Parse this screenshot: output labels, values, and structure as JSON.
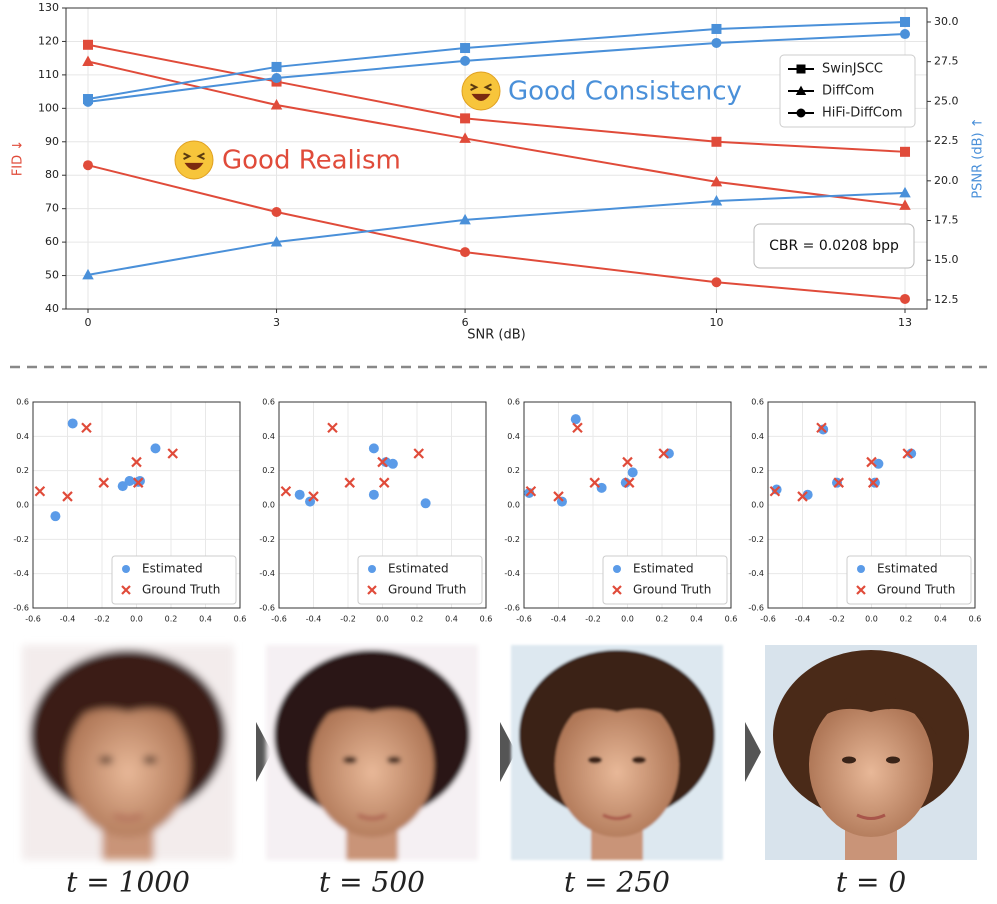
{
  "chart_data": [
    {
      "type": "line",
      "xlabel": "SNR (dB)",
      "ylabel": "FID ↓",
      "ylabel_color": "#e04b3a",
      "y2label": "PSNR (dB) ↑",
      "y2label_color": "#4a90d9",
      "x": [
        0,
        3,
        6,
        10,
        13
      ],
      "xlim": [
        -0.35,
        13.35
      ],
      "xticks": [
        0,
        3,
        6,
        10,
        13
      ],
      "ylim": [
        40,
        130
      ],
      "yticks": [
        40,
        50,
        60,
        70,
        80,
        90,
        100,
        110,
        120,
        130
      ],
      "y2lim": [
        11.93,
        30.88
      ],
      "y2ticks": [
        12.5,
        {
          "value": 15,
          "label": "15.0"
        },
        17.5,
        {
          "value": 20,
          "label": "20.0"
        },
        22.5,
        {
          "value": 25,
          "label": "25.0"
        },
        27.5,
        {
          "value": 30,
          "label": "30.0"
        }
      ],
      "grid": true,
      "series": [
        {
          "marker": "square",
          "color": "#e04b3a",
          "axis": "y",
          "values": [
            119,
            108,
            97,
            90,
            87
          ]
        },
        {
          "marker": "triangle",
          "color": "#e04b3a",
          "axis": "y",
          "values": [
            114,
            101,
            91,
            78,
            71
          ]
        },
        {
          "marker": "circle",
          "color": "#e04b3a",
          "axis": "y",
          "values": [
            83,
            69,
            57,
            48,
            43
          ]
        },
        {
          "marker": "square",
          "color": "#4a90d9",
          "axis": "y2",
          "values": [
            25.15,
            27.17,
            28.36,
            29.56,
            30.0
          ]
        },
        {
          "marker": "triangle",
          "color": "#4a90d9",
          "axis": "y2",
          "values": [
            14.08,
            16.15,
            17.54,
            18.73,
            19.24
          ]
        },
        {
          "marker": "circle",
          "color": "#4a90d9",
          "axis": "y2",
          "values": [
            24.97,
            26.47,
            27.55,
            28.68,
            29.24
          ]
        }
      ],
      "legend": {
        "position": "upper right",
        "entries": [
          {
            "name": "SwinJSCC",
            "marker": "square"
          },
          {
            "name": "DiffCom",
            "marker": "triangle"
          },
          {
            "name": "HiFi-DiffCom",
            "marker": "circle"
          }
        ]
      },
      "annotations": [
        {
          "text": "Good Consistency",
          "color": "#4a90d9"
        },
        {
          "text": "Good Realism",
          "color": "#e04b3a"
        },
        {
          "text": "CBR = 0.0208 bpp",
          "color": "#111111"
        }
      ]
    },
    {
      "type": "scatter",
      "xlim": [
        -0.6,
        0.6
      ],
      "ylim": [
        -0.6,
        0.6
      ],
      "xticks": [
        -0.6,
        -0.4,
        -0.2,
        {
          "value": 0,
          "label": "0.0"
        },
        0.2,
        0.4,
        0.6
      ],
      "yticks": [
        -0.6,
        -0.4,
        -0.2,
        {
          "value": 0,
          "label": "0.0"
        },
        0.2,
        0.4,
        0.6
      ],
      "grid": true,
      "legend": "lower right",
      "series": [
        {
          "name": "Estimated",
          "marker": "circle",
          "color": "#5b9be8",
          "x": [
            -0.37,
            -0.47,
            -0.08,
            -0.04,
            0.01,
            0.11,
            0.02
          ],
          "values": [
            0.475,
            -0.065,
            0.11,
            0.14,
            0.135,
            0.33,
            0.14
          ]
        },
        {
          "name": "Ground Truth",
          "marker": "cross",
          "color": "#e04b3a",
          "x": [
            -0.56,
            -0.4,
            -0.29,
            -0.19,
            0.0,
            0.01,
            0.21
          ],
          "values": [
            0.08,
            0.05,
            0.45,
            0.13,
            0.25,
            0.13,
            0.3
          ]
        }
      ]
    },
    {
      "type": "scatter",
      "xlim": [
        -0.6,
        0.6
      ],
      "ylim": [
        -0.6,
        0.6
      ],
      "xticks": [
        -0.6,
        -0.4,
        -0.2,
        {
          "value": 0,
          "label": "0.0"
        },
        0.2,
        0.4,
        0.6
      ],
      "yticks": [
        -0.6,
        -0.4,
        -0.2,
        {
          "value": 0,
          "label": "0.0"
        },
        0.2,
        0.4,
        0.6
      ],
      "grid": true,
      "legend": "lower right",
      "series": [
        {
          "name": "Estimated",
          "marker": "circle",
          "color": "#5b9be8",
          "x": [
            -0.48,
            -0.42,
            -0.05,
            -0.05,
            0.06,
            0.25,
            0.02
          ],
          "values": [
            0.06,
            0.02,
            0.33,
            0.06,
            0.24,
            0.01,
            0.25
          ]
        },
        {
          "name": "Ground Truth",
          "marker": "cross",
          "color": "#e04b3a",
          "x": [
            -0.56,
            -0.4,
            -0.29,
            -0.19,
            0.0,
            0.01,
            0.21
          ],
          "values": [
            0.08,
            0.05,
            0.45,
            0.13,
            0.25,
            0.13,
            0.3
          ]
        }
      ]
    },
    {
      "type": "scatter",
      "xlim": [
        -0.6,
        0.6
      ],
      "ylim": [
        -0.6,
        0.6
      ],
      "xticks": [
        -0.6,
        -0.4,
        -0.2,
        {
          "value": 0,
          "label": "0.0"
        },
        0.2,
        0.4,
        0.6
      ],
      "yticks": [
        -0.6,
        -0.4,
        -0.2,
        {
          "value": 0,
          "label": "0.0"
        },
        0.2,
        0.4,
        0.6
      ],
      "grid": true,
      "legend": "lower right",
      "series": [
        {
          "name": "Estimated",
          "marker": "circle",
          "color": "#5b9be8",
          "x": [
            -0.57,
            -0.38,
            -0.3,
            -0.15,
            -0.01,
            0.03,
            0.24
          ],
          "values": [
            0.07,
            0.02,
            0.5,
            0.1,
            0.13,
            0.19,
            0.3
          ]
        },
        {
          "name": "Ground Truth",
          "marker": "cross",
          "color": "#e04b3a",
          "x": [
            -0.56,
            -0.4,
            -0.29,
            -0.19,
            0.0,
            0.01,
            0.21
          ],
          "values": [
            0.08,
            0.05,
            0.45,
            0.13,
            0.25,
            0.13,
            0.3
          ]
        }
      ]
    },
    {
      "type": "scatter",
      "xlim": [
        -0.6,
        0.6
      ],
      "ylim": [
        -0.6,
        0.6
      ],
      "xticks": [
        -0.6,
        -0.4,
        -0.2,
        {
          "value": 0,
          "label": "0.0"
        },
        0.2,
        0.4,
        0.6
      ],
      "yticks": [
        -0.6,
        -0.4,
        -0.2,
        {
          "value": 0,
          "label": "0.0"
        },
        0.2,
        0.4,
        0.6
      ],
      "grid": true,
      "legend": "lower right",
      "series": [
        {
          "name": "Estimated",
          "marker": "circle",
          "color": "#5b9be8",
          "x": [
            -0.55,
            -0.37,
            -0.28,
            -0.2,
            0.02,
            0.04,
            0.23
          ],
          "values": [
            0.09,
            0.06,
            0.44,
            0.13,
            0.13,
            0.24,
            0.3
          ]
        },
        {
          "name": "Ground Truth",
          "marker": "cross",
          "color": "#e04b3a",
          "x": [
            -0.56,
            -0.4,
            -0.29,
            -0.19,
            0.0,
            0.01,
            0.21
          ],
          "values": [
            0.08,
            0.05,
            0.45,
            0.13,
            0.25,
            0.13,
            0.3
          ]
        }
      ]
    }
  ],
  "images": [
    {
      "label": "t = 1000"
    },
    {
      "label": "t = 500"
    },
    {
      "label": "t = 250"
    },
    {
      "label": "t = 0"
    }
  ]
}
